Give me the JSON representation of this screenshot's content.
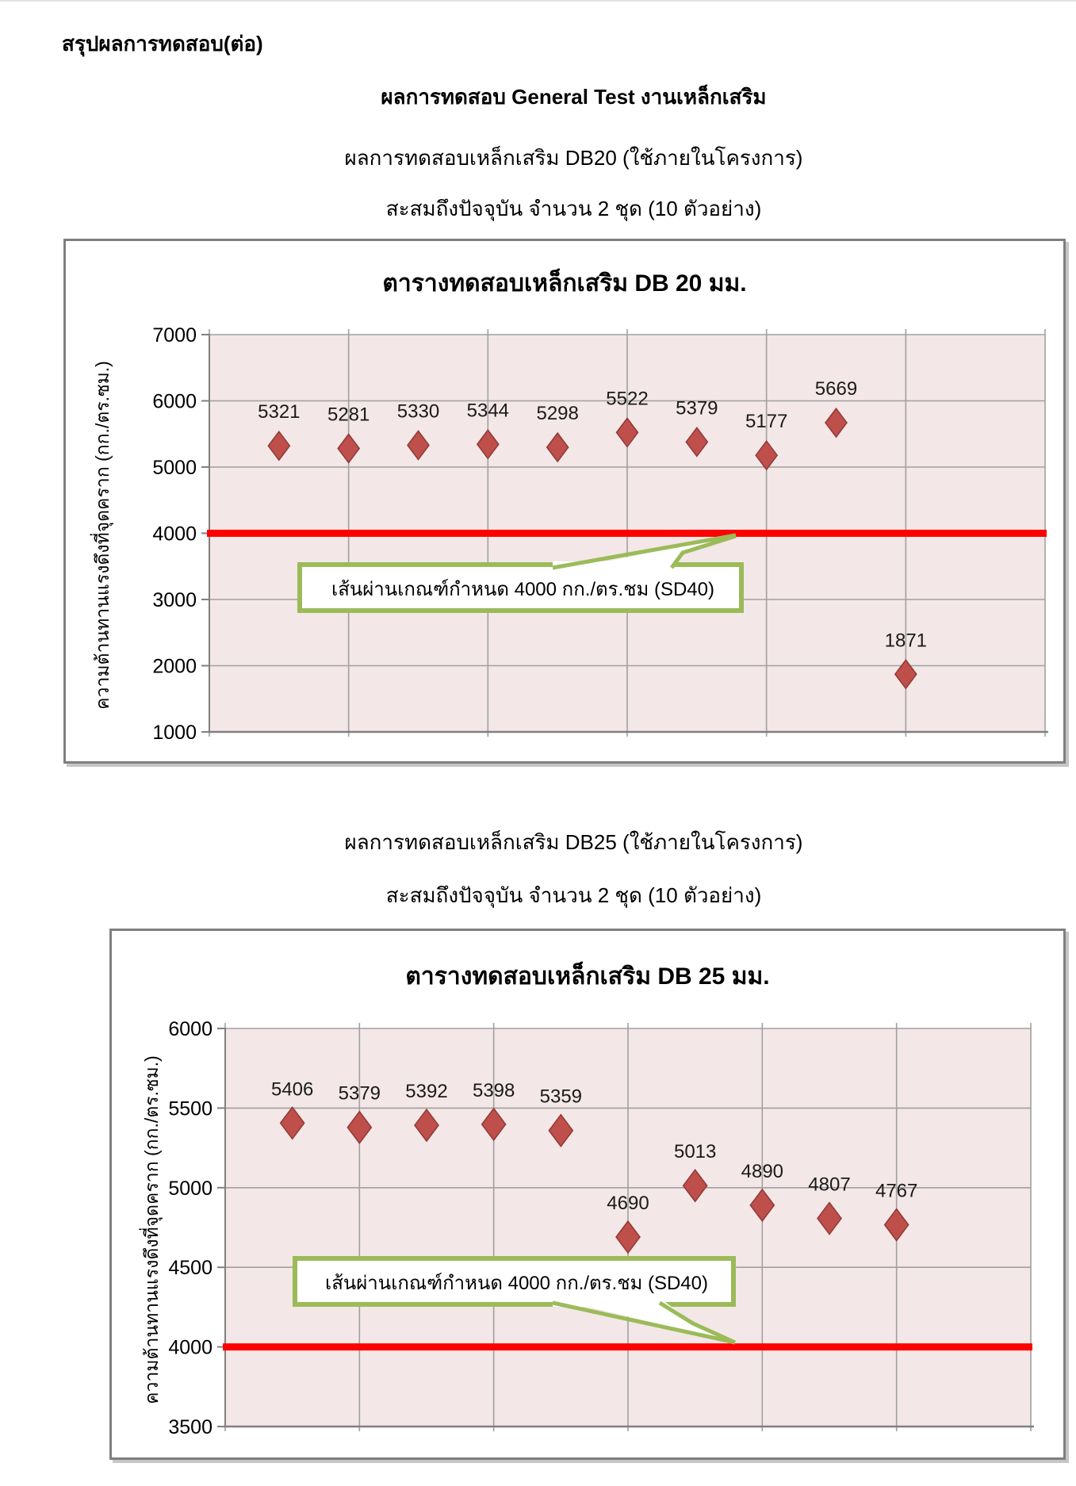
{
  "header": {
    "line1": "สรุปผลการทดสอบ(ต่อ)",
    "line2": "ผลการทดสอบ General Test งานเหล็กเสริม"
  },
  "section_db20": {
    "line1": "ผลการทดสอบเหล็กเสริม DB20 (ใช้ภายในโครงการ)",
    "line2": "สะสมถึงปัจจุบัน จำนวน 2 ชุด (10 ตัวอย่าง)"
  },
  "section_db25": {
    "line1": "ผลการทดสอบเหล็กเสริม DB25 (ใช้ภายในโครงการ)",
    "line2": "สะสมถึงปัจจุบัน จำนวน 2 ชุด (10 ตัวอย่าง)"
  },
  "colors": {
    "plot_fill": "#f4e7e7",
    "grid": "#a0a0a0",
    "axis": "#808080",
    "marker": "#bf4f4b",
    "marker_edge": "#8f3a37",
    "limit_line": "#ff0000",
    "callout_border": "#9bbb59",
    "figure_border": "#7f7f7f",
    "label_text": "#1a1a1a"
  },
  "chart_data": [
    {
      "type": "scatter",
      "title": "ตารางทดสอบเหล็กเสริม DB 20 มม.",
      "ylabel": "ความต้านทานแรงดึงที่จุดคราก  (กก./ตร.ซม.)",
      "xlabel": "",
      "x": [
        1,
        2,
        3,
        4,
        5,
        6,
        7,
        8,
        9,
        10
      ],
      "values": [
        5321,
        5281,
        5330,
        5344,
        5298,
        5522,
        5379,
        5177,
        5669,
        1871
      ],
      "ylim": [
        1000,
        7000
      ],
      "ytick_step": 1000,
      "xlim": [
        0,
        12
      ],
      "xtick_step": 2,
      "limit_line_y": 4000,
      "annotation": "เส้นผ่านเกณฑ์กำหนด 4000 กก./ตร.ชม (SD40)",
      "grid": true,
      "legend": "none",
      "marker": "diamond"
    },
    {
      "type": "scatter",
      "title": "ตารางทดสอบเหล็กเสริม DB 25 มม.",
      "ylabel": "ความต้านทานแรงดึงที่จุดคราก  (กก./ตร.ซม.)",
      "xlabel": "",
      "x": [
        1,
        2,
        3,
        4,
        5,
        6,
        7,
        8,
        9,
        10
      ],
      "values": [
        5406,
        5379,
        5392,
        5398,
        5359,
        4690,
        5013,
        4890,
        4807,
        4767
      ],
      "ylim": [
        3500,
        6000
      ],
      "ytick_step": 500,
      "xlim": [
        0,
        12
      ],
      "xtick_step": 2,
      "limit_line_y": 4000,
      "annotation": "เส้นผ่านเกณฑ์กำหนด 4000 กก./ตร.ชม (SD40)",
      "grid": true,
      "legend": "none",
      "marker": "diamond"
    }
  ]
}
